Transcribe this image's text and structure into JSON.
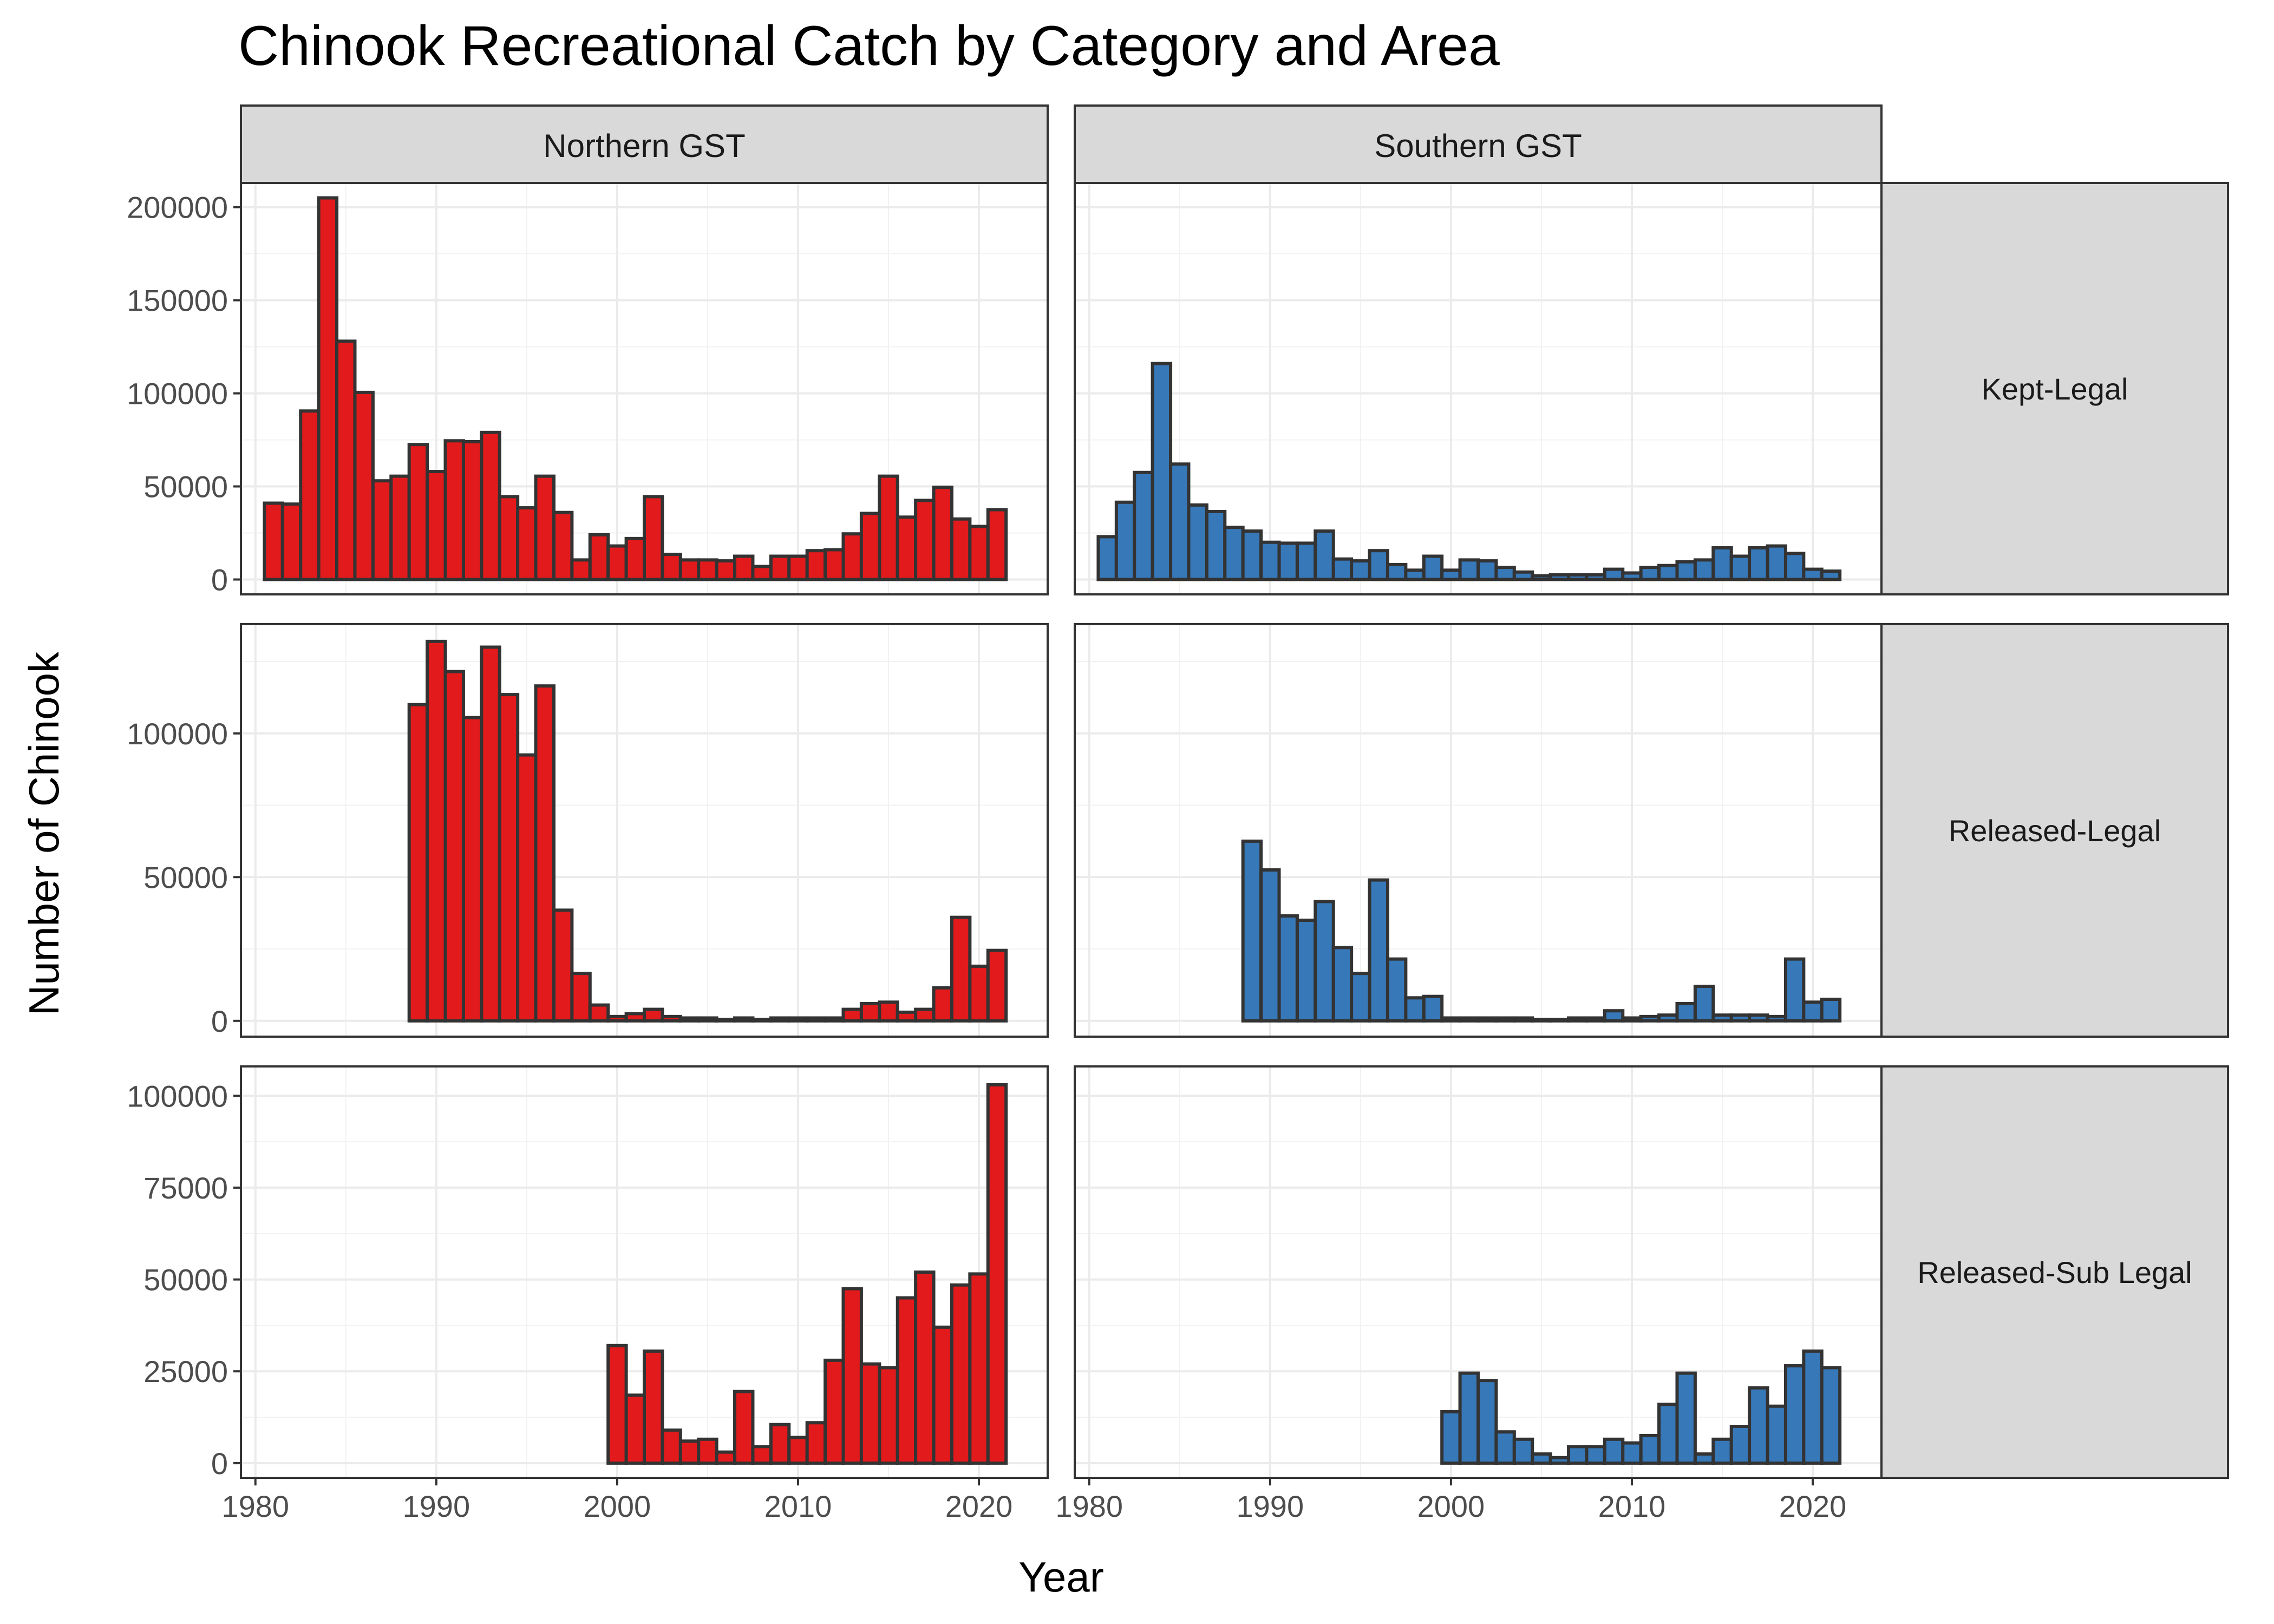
{
  "chart_data": {
    "type": "bar",
    "title": "Chinook Recreational Catch by Category and Area",
    "xlabel": "Year",
    "ylabel": "Number of Chinook",
    "x_ticks": [
      1980,
      1990,
      2000,
      2010,
      2020
    ],
    "xlim": [
      1979.2,
      2023.8
    ],
    "grid": true,
    "columns": [
      "Northern GST",
      "Southern GST"
    ],
    "rows": [
      "Kept-Legal",
      "Released-Legal",
      "Released-Sub Legal"
    ],
    "colors": {
      "Northern GST": "#e31a1c",
      "Southern GST": "#3778b8",
      "outline": "#333333",
      "strip_fill": "#d9d9d9"
    },
    "panels": [
      {
        "row": "Kept-Legal",
        "ylim": [
          -8000,
          213000
        ],
        "y_ticks": [
          0,
          50000,
          100000,
          150000,
          200000
        ],
        "series": [
          {
            "name": "Northern GST",
            "x": [
              1981,
              1982,
              1983,
              1984,
              1985,
              1986,
              1987,
              1988,
              1989,
              1990,
              1991,
              1992,
              1993,
              1994,
              1995,
              1996,
              1997,
              1998,
              1999,
              2000,
              2001,
              2002,
              2003,
              2004,
              2005,
              2006,
              2007,
              2008,
              2009,
              2010,
              2011,
              2012,
              2013,
              2014,
              2015,
              2016,
              2017,
              2018,
              2019,
              2020,
              2021
            ],
            "values": [
              41000,
              40500,
              90500,
              205000,
              128000,
              100500,
              53000,
              55500,
              72500,
              58000,
              74500,
              74000,
              79000,
              44500,
              38500,
              55500,
              36000,
              10500,
              24000,
              18000,
              22000,
              44500,
              13500,
              10500,
              10500,
              10000,
              12500,
              7000,
              12500,
              12500,
              15500,
              16000,
              24500,
              35500,
              55500,
              33500,
              42500,
              49500,
              32500,
              28500,
              37500
            ]
          },
          {
            "name": "Southern GST",
            "x": [
              1981,
              1982,
              1983,
              1984,
              1985,
              1986,
              1987,
              1988,
              1989,
              1990,
              1991,
              1992,
              1993,
              1994,
              1995,
              1996,
              1997,
              1998,
              1999,
              2000,
              2001,
              2002,
              2003,
              2004,
              2005,
              2006,
              2007,
              2008,
              2009,
              2010,
              2011,
              2012,
              2013,
              2014,
              2015,
              2016,
              2017,
              2018,
              2019,
              2020,
              2021
            ],
            "values": [
              23000,
              41500,
              57500,
              116000,
              62000,
              40000,
              36500,
              28000,
              26000,
              20000,
              19500,
              19500,
              26000,
              11000,
              10000,
              15500,
              8000,
              5000,
              12500,
              5000,
              10500,
              10000,
              6500,
              4000,
              2000,
              2500,
              2500,
              2500,
              5500,
              3500,
              6500,
              7500,
              9500,
              10500,
              17000,
              12500,
              17000,
              18000,
              14000,
              5500,
              4500
            ]
          }
        ]
      },
      {
        "row": "Released-Legal",
        "ylim": [
          -5500,
          138000
        ],
        "y_ticks": [
          0,
          50000,
          100000
        ],
        "series": [
          {
            "name": "Northern GST",
            "x": [
              1989,
              1990,
              1991,
              1992,
              1993,
              1994,
              1995,
              1996,
              1997,
              1998,
              1999,
              2000,
              2001,
              2002,
              2003,
              2004,
              2005,
              2006,
              2007,
              2008,
              2009,
              2010,
              2011,
              2012,
              2013,
              2014,
              2015,
              2016,
              2017,
              2018,
              2019,
              2020,
              2021
            ],
            "values": [
              110000,
              132000,
              121500,
              105500,
              130000,
              113500,
              92500,
              116500,
              38500,
              16500,
              5500,
              1500,
              2500,
              4000,
              1500,
              1000,
              1000,
              500,
              1000,
              500,
              1000,
              1000,
              1000,
              1000,
              4000,
              6000,
              6500,
              3000,
              4000,
              11500,
              36000,
              19000,
              24500
            ]
          },
          {
            "name": "Southern GST",
            "x": [
              1989,
              1990,
              1991,
              1992,
              1993,
              1994,
              1995,
              1996,
              1997,
              1998,
              1999,
              2000,
              2001,
              2002,
              2003,
              2004,
              2005,
              2006,
              2007,
              2008,
              2009,
              2010,
              2011,
              2012,
              2013,
              2014,
              2015,
              2016,
              2017,
              2018,
              2019,
              2020,
              2021
            ],
            "values": [
              62500,
              52500,
              36500,
              35000,
              41500,
              25500,
              16500,
              49000,
              21500,
              8000,
              8500,
              1000,
              1000,
              1000,
              1000,
              1000,
              500,
              500,
              1000,
              1000,
              3500,
              1000,
              1500,
              2000,
              6000,
              12000,
              2000,
              2000,
              2000,
              1500,
              21500,
              6500,
              7500
            ]
          }
        ]
      },
      {
        "row": "Released-Sub Legal",
        "ylim": [
          -4000,
          108000
        ],
        "y_ticks": [
          0,
          25000,
          50000,
          75000,
          100000
        ],
        "series": [
          {
            "name": "Northern GST",
            "x": [
              2000,
              2001,
              2002,
              2003,
              2004,
              2005,
              2006,
              2007,
              2008,
              2009,
              2010,
              2011,
              2012,
              2013,
              2014,
              2015,
              2016,
              2017,
              2018,
              2019,
              2020,
              2021
            ],
            "values": [
              32000,
              18500,
              30500,
              9000,
              6000,
              6500,
              3000,
              19500,
              4500,
              10500,
              7000,
              11000,
              28000,
              47500,
              27000,
              26000,
              45000,
              52000,
              37000,
              48500,
              51500,
              103000
            ]
          },
          {
            "name": "Southern GST",
            "x": [
              2000,
              2001,
              2002,
              2003,
              2004,
              2005,
              2006,
              2007,
              2008,
              2009,
              2010,
              2011,
              2012,
              2013,
              2014,
              2015,
              2016,
              2017,
              2018,
              2019,
              2020,
              2021
            ],
            "values": [
              14000,
              24500,
              22500,
              8500,
              6500,
              2500,
              1500,
              4500,
              4500,
              6500,
              5500,
              7500,
              16000,
              24500,
              2500,
              6500,
              10000,
              20500,
              15500,
              26500,
              30500,
              26000
            ]
          }
        ]
      }
    ]
  }
}
